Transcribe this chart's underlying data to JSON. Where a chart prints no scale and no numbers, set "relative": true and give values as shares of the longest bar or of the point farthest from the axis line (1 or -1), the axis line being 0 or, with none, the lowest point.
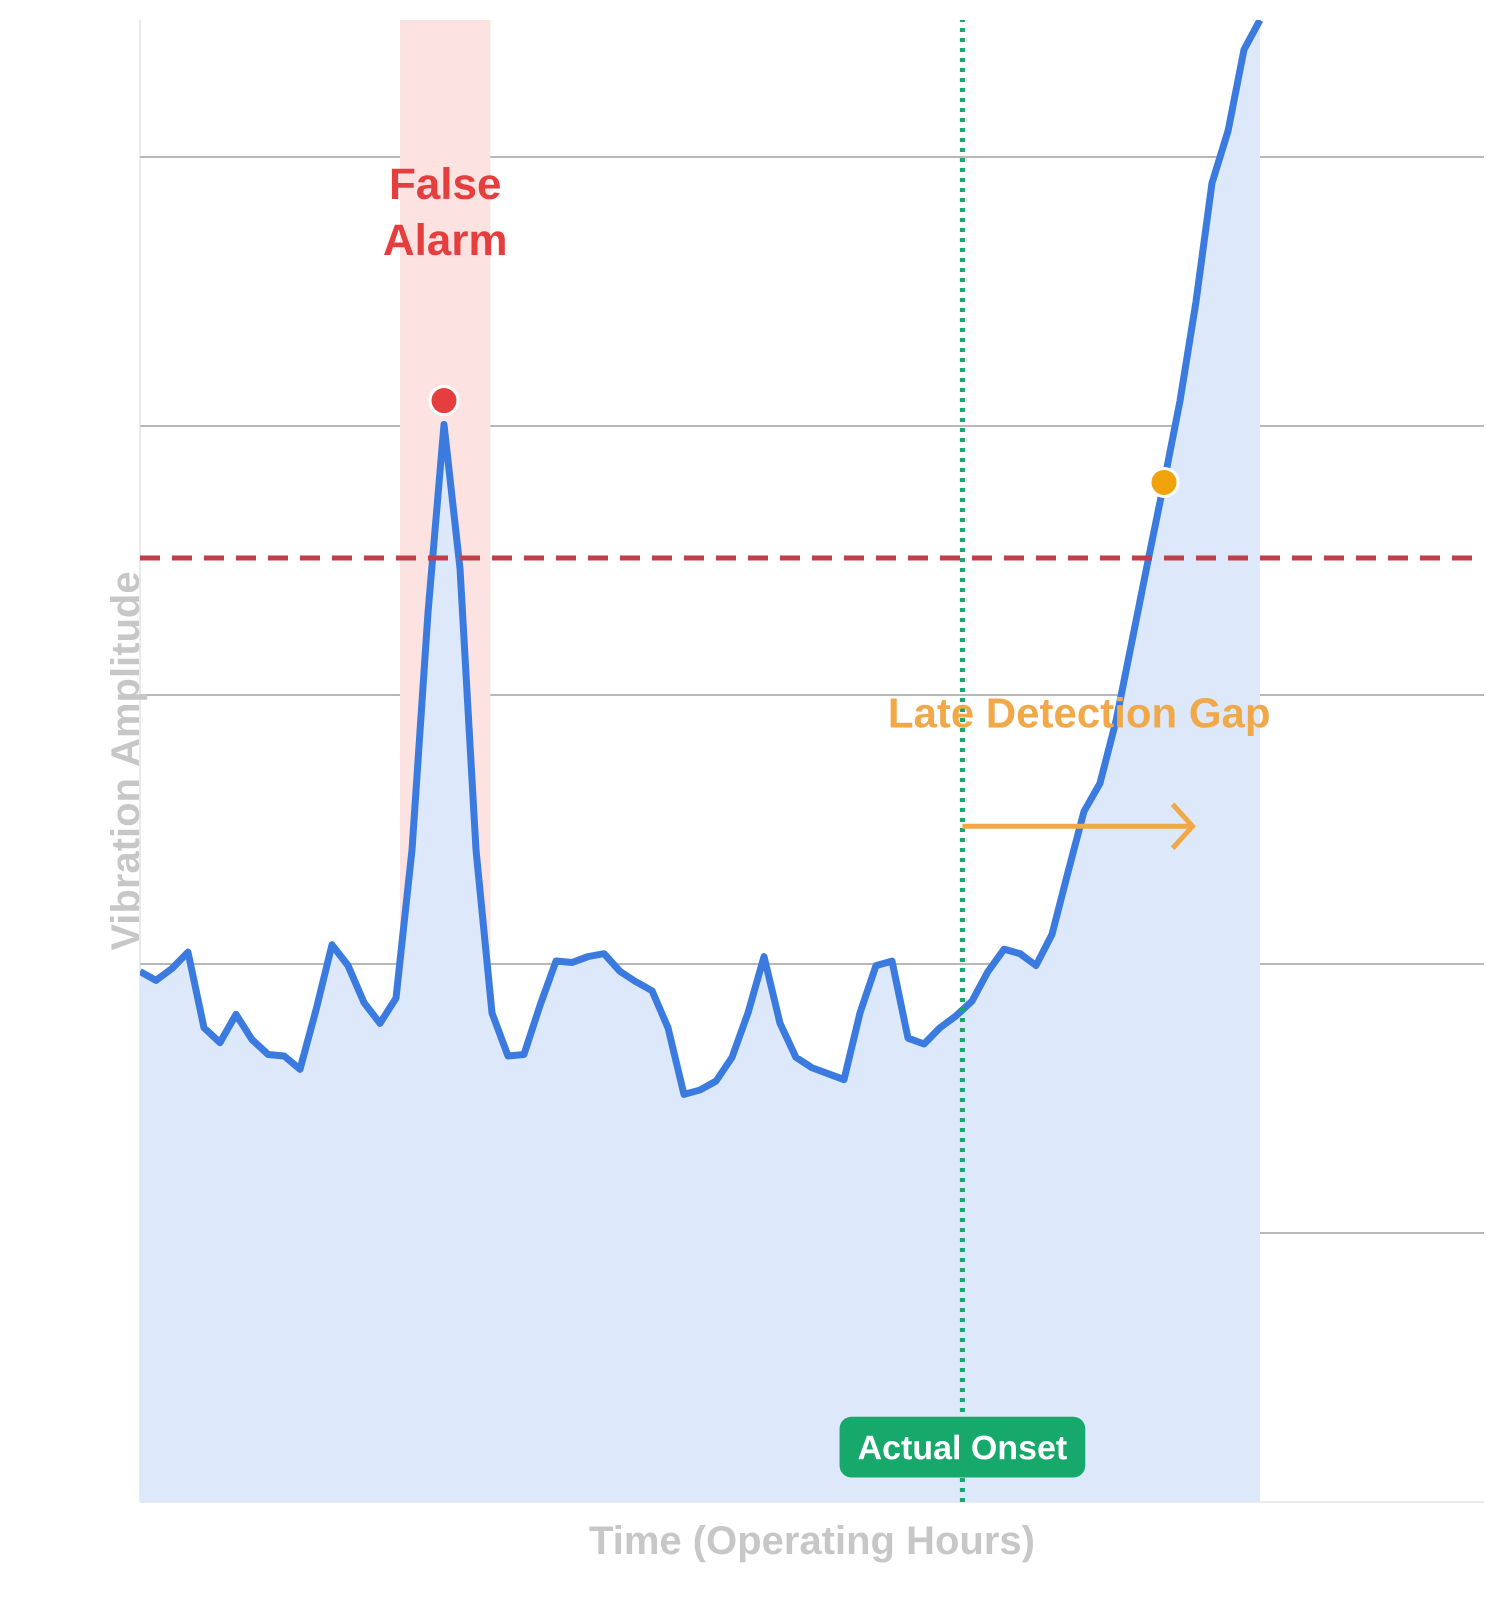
{
  "chart_data": {
    "type": "area",
    "relative": true,
    "xlabel": "Time (Operating Hours)",
    "ylabel": "Vibration Amplitude",
    "grid": "y",
    "categories": [
      null,
      null,
      null,
      null,
      null,
      null,
      null,
      null,
      null,
      null,
      null,
      null,
      null,
      null,
      null,
      null,
      null,
      null,
      null,
      null,
      null,
      null,
      null,
      null,
      null,
      null,
      null,
      null,
      null,
      null,
      null,
      null,
      null,
      null,
      null,
      null,
      null,
      null,
      null,
      null,
      null,
      null,
      null,
      null,
      null,
      null,
      null,
      null,
      null,
      null,
      null,
      null,
      null,
      null,
      null,
      null,
      null,
      null,
      null,
      null,
      null,
      null,
      null,
      null,
      null,
      null,
      null,
      null,
      null,
      null,
      null,
      null,
      null,
      null,
      null,
      null,
      null,
      null,
      null,
      null,
      null,
      null,
      null,
      null,
      null
    ],
    "series": [
      {
        "color": "#3b7be0",
        "values": [
          0.358,
          0.352,
          0.36,
          0.371,
          0.32,
          0.31,
          0.329,
          0.312,
          0.302,
          0.301,
          0.292,
          0.332,
          0.376,
          0.362,
          0.337,
          0.323,
          0.34,
          0.44,
          0.6,
          0.727,
          0.63,
          0.44,
          0.33,
          0.301,
          0.302,
          0.335,
          0.365,
          0.364,
          0.368,
          0.37,
          0.358,
          0.351,
          0.345,
          0.32,
          0.275,
          0.278,
          0.284,
          0.3,
          0.33,
          0.368,
          0.323,
          0.3,
          0.293,
          0.289,
          0.285,
          0.33,
          0.362,
          0.365,
          0.313,
          0.309,
          0.32,
          0.328,
          0.338,
          0.358,
          0.373,
          0.37,
          0.362,
          0.383,
          0.425,
          0.466,
          0.485,
          0.527,
          0.581,
          0.635,
          0.688,
          0.743,
          0.81,
          0.89,
          0.925,
          0.98,
          1.0,
          null,
          null,
          null,
          null,
          null,
          null,
          null,
          null,
          null,
          null,
          null,
          null,
          null,
          null
        ]
      }
    ],
    "ref_lines": [
      {
        "axis": "y",
        "value": 0.637,
        "color": "#c0404a",
        "line_style": "dashed"
      }
    ],
    "annotations": [
      "False Alarm",
      "Actual Onset",
      "Late Detection Gap"
    ]
  }
}
